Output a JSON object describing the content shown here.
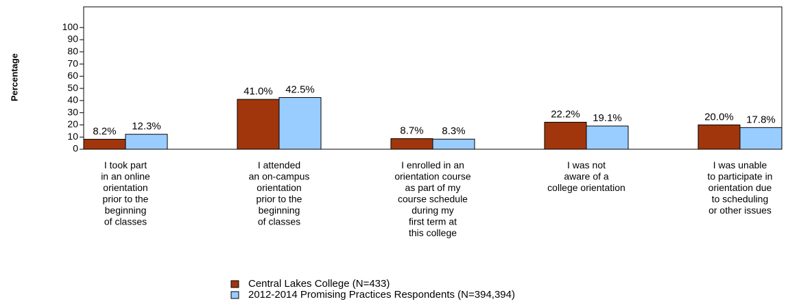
{
  "chart_data": {
    "type": "bar",
    "y_label": "Percentage",
    "categories": [
      "I took part\nin an online\norientation\nprior to the\nbeginning\nof classes",
      "I attended\nan on-campus\norientation\nprior to the\nbeginning\nof classes",
      "I enrolled in an\norientation course\nas part of my\ncourse schedule\nduring my\nfirst term at\nthis college",
      "I was not\naware of a\ncollege orientation",
      "I was unable\nto participate in\norientation due\nto scheduling\nor other issues"
    ],
    "series": [
      {
        "name": "Central Lakes College (N=433)",
        "color": "#a1360d",
        "values": [
          8.2,
          41.0,
          8.7,
          22.2,
          20.0
        ],
        "value_labels": [
          "8.2%",
          "41.0%",
          "8.7%",
          "22.2%",
          "20.0%"
        ]
      },
      {
        "name": "2012-2014 Promising Practices Respondents (N=394,394)",
        "color": "#99ccff",
        "values": [
          12.3,
          42.5,
          8.3,
          19.1,
          17.8
        ],
        "value_labels": [
          "12.3%",
          "42.5%",
          "8.3%",
          "19.1%",
          "17.8%"
        ]
      }
    ],
    "ylim": [
      0,
      117
    ],
    "yticks": [
      0,
      10,
      20,
      30,
      40,
      50,
      60,
      70,
      80,
      90,
      100
    ]
  }
}
